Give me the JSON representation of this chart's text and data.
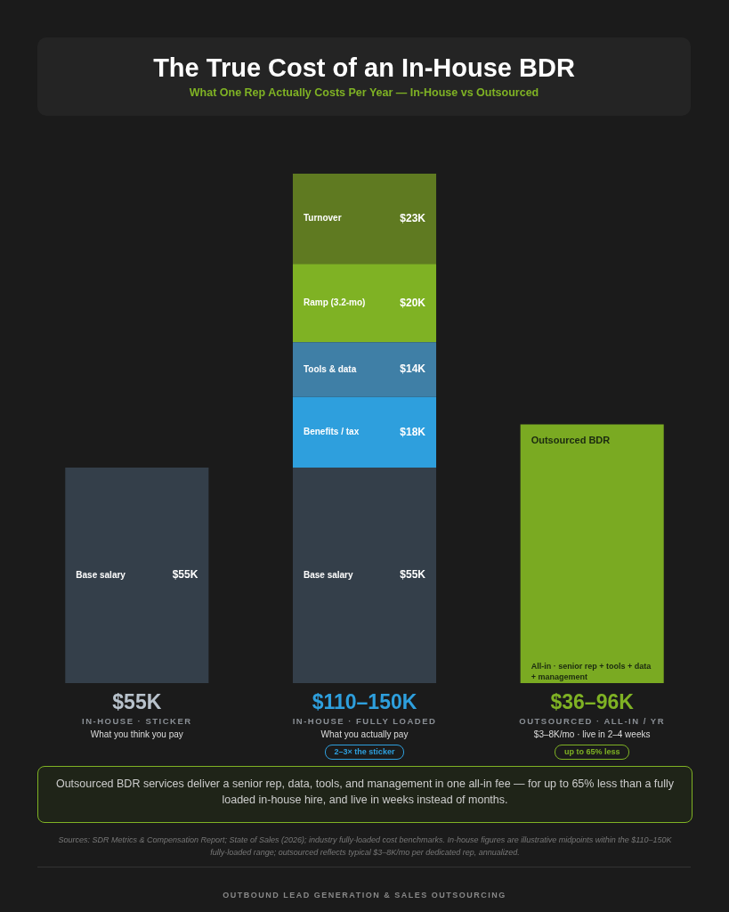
{
  "chart_data": {
    "type": "bar",
    "title": "The True Cost of an In-House BDR",
    "subtitle": "What One Rep Actually Costs Per Year — In-House vs Outsourced",
    "categories": [
      "IN-HOUSE · STICKER",
      "IN-HOUSE · FULLY LOADED",
      "OUTSOURCED · ALL-IN / YR"
    ],
    "stacked": true,
    "legend": false,
    "series": [
      {
        "name": "Base salary",
        "color": "#343f4a",
        "values": [
          55,
          55,
          null
        ],
        "value_labels": [
          "$55K",
          "$55K",
          null
        ]
      },
      {
        "name": "Benefits / tax",
        "color": "#2e9fdd",
        "values": [
          null,
          18,
          null
        ],
        "value_labels": [
          null,
          "$18K",
          null
        ]
      },
      {
        "name": "Tools & data",
        "color": "#3f7fa6",
        "values": [
          null,
          14,
          null
        ],
        "value_labels": [
          null,
          "$14K",
          null
        ]
      },
      {
        "name": "Ramp (3.2-mo)",
        "color": "#7fb224",
        "values": [
          null,
          20,
          null
        ],
        "value_labels": [
          null,
          "$20K",
          null
        ]
      },
      {
        "name": "Turnover",
        "color": "#5f7a21",
        "values": [
          null,
          23,
          null
        ],
        "value_labels": [
          null,
          "$23K",
          null
        ]
      },
      {
        "name": "Outsourced BDR",
        "color": "#7aaa22",
        "values": [
          null,
          null,
          66
        ],
        "value_labels": [
          null,
          null,
          null
        ]
      }
    ],
    "totals": [
      "$55K",
      "$110–150K",
      "$36–96K"
    ],
    "annotations": [
      "What you think you pay",
      "What you actually pay",
      "2–3× the sticker",
      "$3–8K/mo · live in 2–4 weeks",
      "up to 65% less",
      "All-in · senior rep + tools + data + management",
      "Outsourced BDR services deliver a senior rep, data, tools, and management in one all-in fee — for up to 65% less than a fully loaded in-house hire, and live in weeks instead of months.",
      "Sources: SDR Metrics & Compensation Report; State of Sales (2026); industry fully-loaded cost benchmarks. In-house figures are illustrative midpoints within the $110–150K fully-loaded range; outsourced reflects typical $3–8K/mo per dedicated rep, annualized.",
      "OUTBOUND LEAD GENERATION & SALES OUTSOURCING"
    ]
  }
}
